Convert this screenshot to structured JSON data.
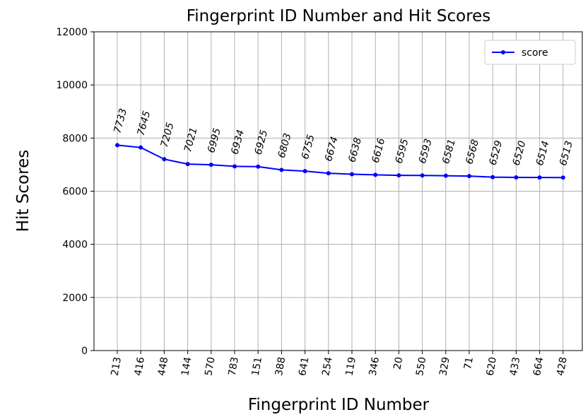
{
  "chart_data": {
    "type": "line",
    "title": "Fingerprint ID Number and Hit Scores",
    "x_label": "Fingerprint ID Number",
    "y_label": "Hit Scores",
    "categories": [
      "213",
      "416",
      "448",
      "144",
      "570",
      "783",
      "151",
      "388",
      "641",
      "254",
      "119",
      "346",
      "20",
      "550",
      "329",
      "71",
      "620",
      "433",
      "664",
      "428"
    ],
    "series": [
      {
        "name": "score",
        "color": "#0000ff",
        "values": [
          7733,
          7645,
          7205,
          7021,
          6995,
          6934,
          6925,
          6803,
          6755,
          6674,
          6638,
          6616,
          6595,
          6593,
          6581,
          6568,
          6529,
          6520,
          6514,
          6513
        ]
      }
    ],
    "ylim": [
      0,
      12000
    ],
    "yticks": [
      0,
      2000,
      4000,
      6000,
      8000,
      10000,
      12000
    ],
    "grid": true,
    "legend": "upper right"
  }
}
